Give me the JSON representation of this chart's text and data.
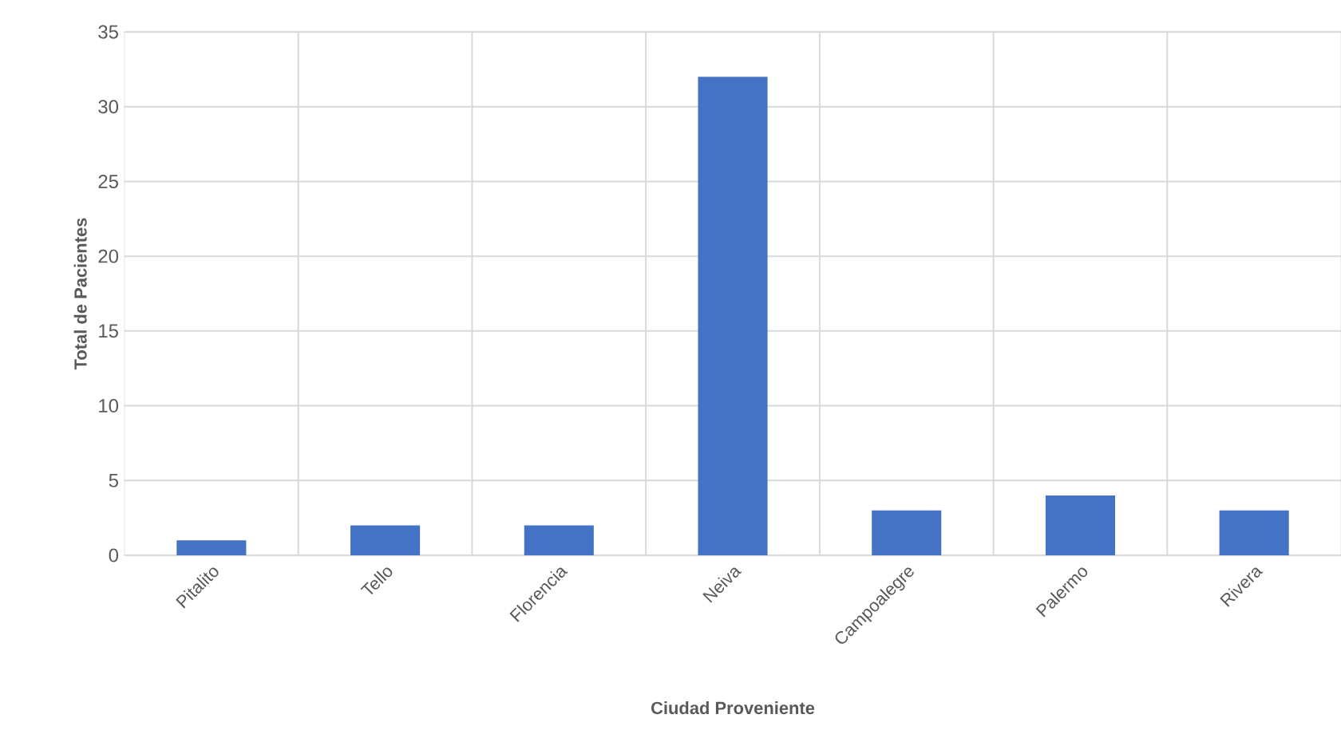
{
  "chart_data": {
    "type": "bar",
    "xlabel": "Ciudad Proveniente",
    "ylabel": "Total de Pacientes",
    "categories": [
      "Pitalito",
      "Tello",
      "Florencia",
      "Neiva",
      "Campoalegre",
      "Palermo",
      "Rivera"
    ],
    "values": [
      1,
      2,
      2,
      32,
      3,
      4,
      3
    ],
    "color": "#4472c4",
    "ylim": [
      0,
      35
    ],
    "yticks": [
      0,
      5,
      10,
      15,
      20,
      25,
      30,
      35
    ],
    "grid": true
  }
}
